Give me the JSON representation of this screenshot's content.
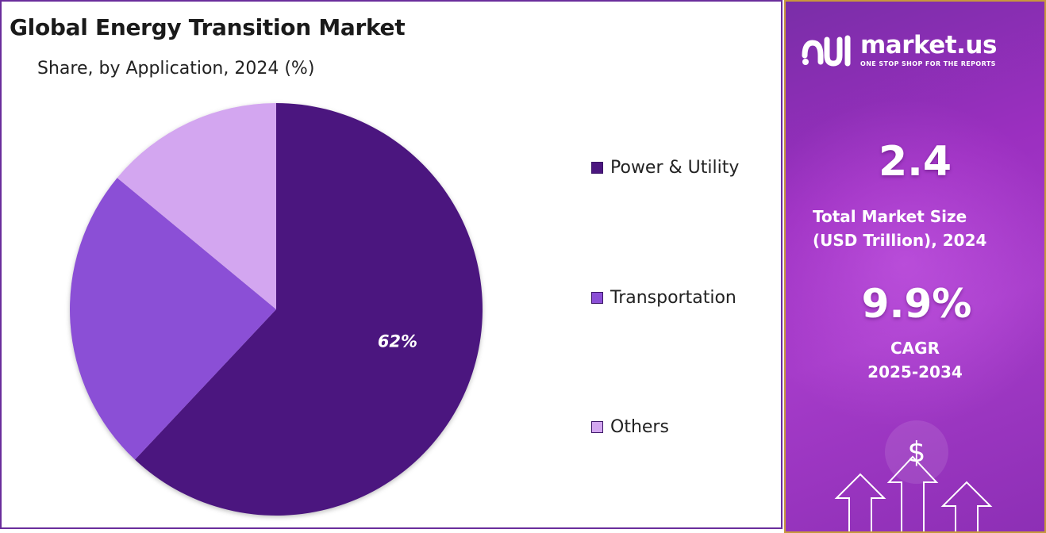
{
  "chart_data": {
    "type": "pie",
    "title": "Global Energy Transition Market",
    "subtitle": "Share, by Application, 2024 (%)",
    "categories": [
      "Power & Utility",
      "Transportation",
      "Others"
    ],
    "values": [
      62,
      24,
      14
    ],
    "data_labels": [
      "62%",
      "",
      ""
    ],
    "colors": [
      "#4b167f",
      "#8b4fd6",
      "#d3a6f0"
    ],
    "legend_position": "right"
  },
  "brand": {
    "name": "market.us",
    "tagline": "ONE STOP SHOP FOR THE REPORTS"
  },
  "stats": {
    "market_size_value": "2.4",
    "market_size_label_line1": "Total Market Size",
    "market_size_label_line2": "(USD Trillion), 2024",
    "cagr_value": "9.9%",
    "cagr_label_line1": "CAGR",
    "cagr_label_line2": "2025-2034"
  },
  "decor": {
    "currency_symbol": "$",
    "icons": [
      "dollar-icon",
      "up-arrow-icon"
    ]
  }
}
